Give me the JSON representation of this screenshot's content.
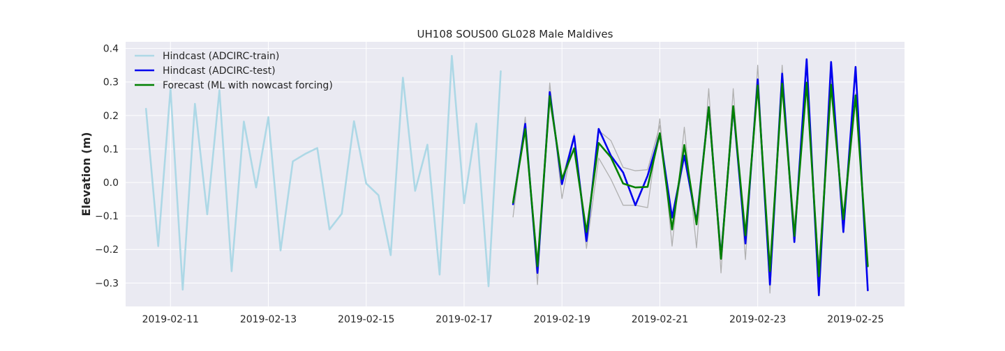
{
  "chart_data": {
    "type": "line",
    "title": "UH108 SOUS00 GL028 Male Maldives",
    "xlabel": "",
    "ylabel": "Elevation (m)",
    "x_axis_kind": "date",
    "xlim": [
      "2019-02-10T02:00",
      "2019-02-26T00:00"
    ],
    "ylim": [
      -0.37,
      0.42
    ],
    "xticks": [
      "2019-02-11",
      "2019-02-13",
      "2019-02-15",
      "2019-02-17",
      "2019-02-19",
      "2019-02-21",
      "2019-02-23",
      "2019-02-25"
    ],
    "yticks": [
      -0.3,
      -0.2,
      -0.1,
      0.0,
      0.1,
      0.2,
      0.3,
      0.4
    ],
    "ytick_labels": [
      "−0.3",
      "−0.2",
      "−0.1",
      "0.0",
      "0.1",
      "0.2",
      "0.3",
      "0.4"
    ],
    "grid": true,
    "legend_position": "top-left",
    "background_color": "#eaeaf2",
    "series": [
      {
        "name": "Hindcast (ADCIRC-train)",
        "color": "#add8e6",
        "x": [
          "2019-02-10T12:00",
          "2019-02-10T18:00",
          "2019-02-11T00:00",
          "2019-02-11T06:00",
          "2019-02-11T12:00",
          "2019-02-11T18:00",
          "2019-02-12T00:00",
          "2019-02-12T06:00",
          "2019-02-12T12:00",
          "2019-02-12T18:00",
          "2019-02-13T00:00",
          "2019-02-13T06:00",
          "2019-02-13T12:00",
          "2019-02-13T18:00",
          "2019-02-14T00:00",
          "2019-02-14T06:00",
          "2019-02-14T12:00",
          "2019-02-14T18:00",
          "2019-02-15T00:00",
          "2019-02-15T06:00",
          "2019-02-15T12:00",
          "2019-02-15T18:00",
          "2019-02-16T00:00",
          "2019-02-16T06:00",
          "2019-02-16T12:00",
          "2019-02-16T18:00",
          "2019-02-17T00:00",
          "2019-02-17T06:00",
          "2019-02-17T12:00",
          "2019-02-17T18:00"
        ],
        "values": [
          0.22,
          -0.19,
          0.28,
          -0.32,
          0.235,
          -0.095,
          0.275,
          -0.265,
          0.182,
          -0.015,
          0.195,
          -0.203,
          0.063,
          0.085,
          0.103,
          -0.14,
          -0.093,
          0.183,
          -0.003,
          -0.038,
          -0.217,
          0.313,
          -0.025,
          0.113,
          -0.275,
          0.378,
          -0.062,
          0.176,
          -0.31,
          0.332
        ]
      },
      {
        "name": "",
        "color": "#b0b0b0",
        "x": [
          "2019-02-18T00:00",
          "2019-02-18T06:00",
          "2019-02-18T12:00",
          "2019-02-18T18:00",
          "2019-02-19T00:00",
          "2019-02-19T06:00",
          "2019-02-19T12:00",
          "2019-02-19T18:00",
          "2019-02-20T00:00",
          "2019-02-20T06:00",
          "2019-02-20T12:00",
          "2019-02-20T18:00",
          "2019-02-21T00:00",
          "2019-02-21T06:00",
          "2019-02-21T12:00",
          "2019-02-21T18:00",
          "2019-02-22T00:00",
          "2019-02-22T06:00",
          "2019-02-22T12:00",
          "2019-02-22T18:00",
          "2019-02-23T00:00",
          "2019-02-23T06:00",
          "2019-02-23T12:00",
          "2019-02-23T18:00",
          "2019-02-24T00:00",
          "2019-02-24T06:00",
          "2019-02-24T12:00",
          "2019-02-24T18:00",
          "2019-02-25T00:00",
          "2019-02-25T06:00"
        ],
        "values": [
          -0.103,
          0.195,
          -0.305,
          0.297,
          -0.048,
          0.145,
          -0.197,
          0.073,
          0.01,
          -0.068,
          -0.068,
          -0.075,
          0.19,
          -0.19,
          0.165,
          -0.195,
          0.28,
          -0.27,
          0.28,
          -0.23,
          0.35,
          -0.33,
          0.35,
          -0.155,
          0.36,
          -0.305,
          0.335,
          -0.15,
          0.265,
          -0.25
        ]
      },
      {
        "name": "",
        "color": "#b0b0b0",
        "x": [
          "2019-02-18T00:00",
          "2019-02-18T06:00",
          "2019-02-18T12:00",
          "2019-02-18T18:00",
          "2019-02-19T00:00",
          "2019-02-19T06:00",
          "2019-02-19T12:00",
          "2019-02-19T18:00",
          "2019-02-20T00:00",
          "2019-02-20T06:00",
          "2019-02-20T12:00",
          "2019-02-20T18:00",
          "2019-02-21T00:00",
          "2019-02-21T06:00",
          "2019-02-21T12:00",
          "2019-02-21T18:00",
          "2019-02-22T00:00",
          "2019-02-22T06:00",
          "2019-02-22T12:00",
          "2019-02-22T18:00",
          "2019-02-23T00:00",
          "2019-02-23T06:00",
          "2019-02-23T12:00",
          "2019-02-23T18:00",
          "2019-02-24T00:00",
          "2019-02-24T06:00",
          "2019-02-24T12:00",
          "2019-02-24T18:00",
          "2019-02-25T00:00",
          "2019-02-25T06:00"
        ],
        "values": [
          -0.05,
          0.16,
          -0.23,
          0.24,
          0.01,
          0.14,
          -0.15,
          0.155,
          0.125,
          0.045,
          0.035,
          0.038,
          0.17,
          -0.14,
          0.08,
          -0.11,
          0.21,
          -0.2,
          0.21,
          -0.15,
          0.285,
          -0.24,
          0.3,
          -0.13,
          0.29,
          -0.255,
          0.3,
          -0.13,
          0.245,
          -0.24
        ]
      },
      {
        "name": "Hindcast (ADCIRC-test)",
        "color": "#0000ee",
        "x": [
          "2019-02-18T00:00",
          "2019-02-18T06:00",
          "2019-02-18T12:00",
          "2019-02-18T18:00",
          "2019-02-19T00:00",
          "2019-02-19T06:00",
          "2019-02-19T12:00",
          "2019-02-19T18:00",
          "2019-02-20T00:00",
          "2019-02-20T06:00",
          "2019-02-20T12:00",
          "2019-02-20T18:00",
          "2019-02-21T00:00",
          "2019-02-21T06:00",
          "2019-02-21T12:00",
          "2019-02-21T18:00",
          "2019-02-22T00:00",
          "2019-02-22T06:00",
          "2019-02-22T12:00",
          "2019-02-22T18:00",
          "2019-02-23T00:00",
          "2019-02-23T06:00",
          "2019-02-23T12:00",
          "2019-02-23T18:00",
          "2019-02-24T00:00",
          "2019-02-24T06:00",
          "2019-02-24T12:00",
          "2019-02-24T18:00",
          "2019-02-25T00:00",
          "2019-02-25T06:00"
        ],
        "values": [
          -0.065,
          0.175,
          -0.27,
          0.27,
          -0.005,
          0.138,
          -0.175,
          0.16,
          0.08,
          0.03,
          -0.068,
          0.02,
          0.145,
          -0.105,
          0.08,
          -0.118,
          0.225,
          -0.225,
          0.225,
          -0.182,
          0.308,
          -0.305,
          0.325,
          -0.178,
          0.368,
          -0.337,
          0.36,
          -0.148,
          0.345,
          -0.322
        ]
      },
      {
        "name": "Forecast (ML with nowcast forcing)",
        "color": "#008000",
        "x": [
          "2019-02-18T00:00",
          "2019-02-18T06:00",
          "2019-02-18T12:00",
          "2019-02-18T18:00",
          "2019-02-19T00:00",
          "2019-02-19T06:00",
          "2019-02-19T12:00",
          "2019-02-19T18:00",
          "2019-02-20T00:00",
          "2019-02-20T06:00",
          "2019-02-20T12:00",
          "2019-02-20T18:00",
          "2019-02-21T00:00",
          "2019-02-21T06:00",
          "2019-02-21T12:00",
          "2019-02-21T18:00",
          "2019-02-22T00:00",
          "2019-02-22T06:00",
          "2019-02-22T12:00",
          "2019-02-22T18:00",
          "2019-02-23T00:00",
          "2019-02-23T06:00",
          "2019-02-23T12:00",
          "2019-02-23T18:00",
          "2019-02-24T00:00",
          "2019-02-24T06:00",
          "2019-02-24T12:00",
          "2019-02-24T18:00",
          "2019-02-25T00:00",
          "2019-02-25T06:00"
        ],
        "values": [
          -0.06,
          0.16,
          -0.25,
          0.258,
          0.01,
          0.102,
          -0.148,
          0.118,
          0.075,
          -0.003,
          -0.015,
          -0.013,
          0.147,
          -0.14,
          0.112,
          -0.125,
          0.225,
          -0.228,
          0.228,
          -0.158,
          0.29,
          -0.265,
          0.295,
          -0.16,
          0.298,
          -0.28,
          0.292,
          -0.11,
          0.26,
          -0.25
        ]
      }
    ]
  }
}
